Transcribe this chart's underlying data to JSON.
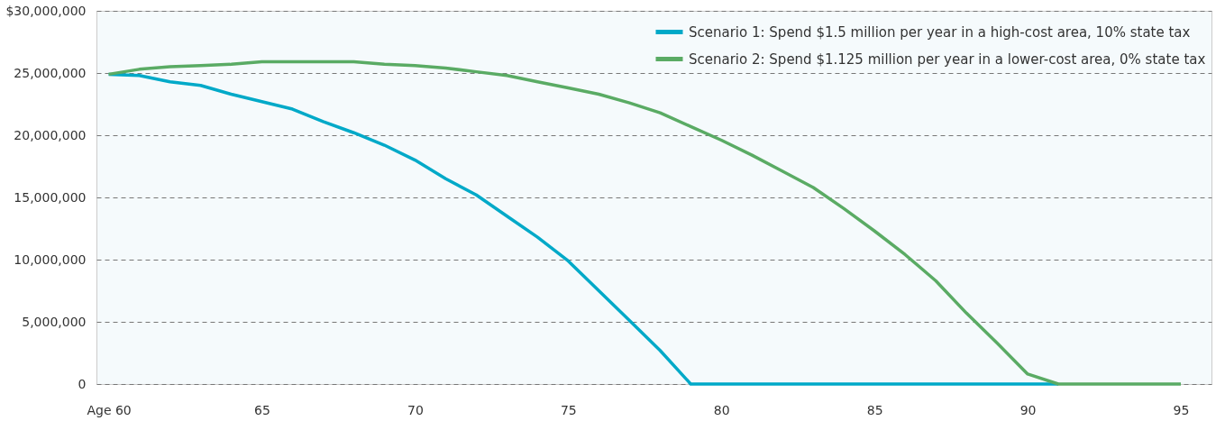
{
  "chart_data": {
    "type": "line",
    "x": [
      60,
      61,
      62,
      63,
      64,
      65,
      66,
      67,
      68,
      69,
      70,
      71,
      72,
      73,
      74,
      75,
      76,
      77,
      78,
      79,
      80,
      81,
      82,
      83,
      84,
      85,
      86,
      87,
      88,
      89,
      90,
      91,
      92,
      93,
      94,
      95
    ],
    "series": [
      {
        "name": "Scenario 1: Spend $1.5 million per year in a high-cost area, 10% state tax",
        "color": "#00a9c8",
        "values": [
          24900000,
          24800000,
          24300000,
          24000000,
          23300000,
          22700000,
          22100000,
          21100000,
          20200000,
          19200000,
          18000000,
          16500000,
          15200000,
          13500000,
          11800000,
          9900000,
          7500000,
          5100000,
          2700000,
          0,
          0,
          0,
          0,
          0,
          0,
          0,
          0,
          0,
          0,
          0,
          0,
          0,
          null,
          null,
          null,
          null
        ]
      },
      {
        "name": "Scenario 2: Spend $1.125 million per year in a lower-cost area, 0% state tax",
        "color": "#5aab64",
        "values": [
          24900000,
          25300000,
          25500000,
          25600000,
          25700000,
          25900000,
          25900000,
          25900000,
          25900000,
          25700000,
          25600000,
          25400000,
          25100000,
          24800000,
          24300000,
          23800000,
          23300000,
          22600000,
          21800000,
          20700000,
          19600000,
          18400000,
          17100000,
          15800000,
          14100000,
          12300000,
          10400000,
          8300000,
          5700000,
          3300000,
          800000,
          0,
          0,
          0,
          0,
          0
        ]
      }
    ],
    "xlim": [
      59.6,
      96
    ],
    "xticks": [
      {
        "value": 60,
        "label": "Age 60"
      },
      65,
      70,
      75,
      80,
      85,
      90,
      95
    ],
    "ylim": [
      0,
      30000000
    ],
    "yticks": [
      0,
      {
        "value": 5000000,
        "label": "5,000,000"
      },
      {
        "value": 10000000,
        "label": "10,000,000"
      },
      {
        "value": 15000000,
        "label": "15,000,000"
      },
      {
        "value": 20000000,
        "label": "20,000,000"
      },
      {
        "value": 25000000,
        "label": "25,000,000"
      },
      {
        "value": 30000000,
        "label": "$30,000,000"
      }
    ],
    "grid": "y",
    "legend": "top right",
    "marker": "none",
    "line_style": "solid"
  }
}
